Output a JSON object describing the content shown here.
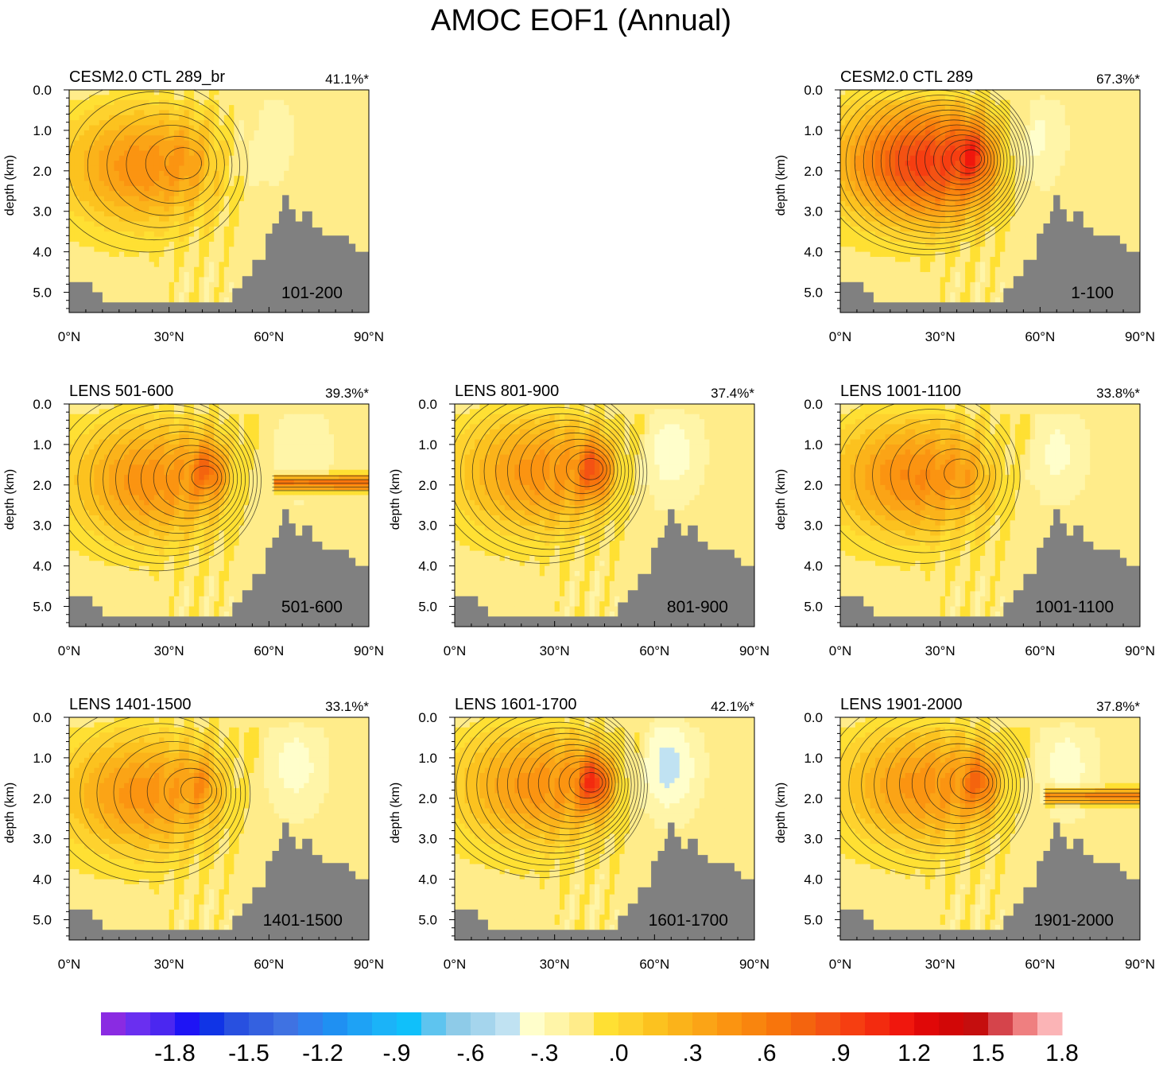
{
  "figure": {
    "title": "AMOC EOF1 (Annual)",
    "ylabel": "depth (km)",
    "xticks": [
      "0°N",
      "30°N",
      "60°N",
      "90°N"
    ],
    "yticks": [
      "0.0",
      "1.0",
      "2.0",
      "3.0",
      "4.0",
      "5.0"
    ]
  },
  "chart_data": [
    {
      "type": "heatmap",
      "title": "CESM2.0 CTL 289_br",
      "variance": "41.1%*",
      "period": "101-200",
      "amp": 0.62,
      "lat_center": 22,
      "depth_center": 1.9,
      "hot_lat": 36,
      "hot_amp": 0.12,
      "neg_lat": 58,
      "neg_amp": 0.15,
      "band": false,
      "band_amp": 0,
      "xlabel": "",
      "ylabel": "depth (km)",
      "xlim": [
        0,
        90
      ],
      "ylim": [
        5.5,
        0
      ]
    },
    {
      "type": "heatmap",
      "title": "CESM2.0 CTL 289",
      "variance": "67.3%*",
      "period": "1-100",
      "amp": 1.1,
      "lat_center": 25,
      "depth_center": 1.8,
      "hot_lat": 40,
      "hot_amp": 0.55,
      "neg_lat": 58,
      "neg_amp": 0.2,
      "band": false,
      "band_amp": 0,
      "xlabel": "",
      "ylabel": "depth (km)",
      "xlim": [
        0,
        90
      ],
      "ylim": [
        5.5,
        0
      ]
    },
    {
      "type": "heatmap",
      "title": "LENS 501-600",
      "variance": "39.3%*",
      "period": "501-600",
      "amp": 0.62,
      "lat_center": 25,
      "depth_center": 1.9,
      "hot_lat": 42,
      "hot_amp": 0.55,
      "neg_lat": 70,
      "neg_amp": 0.15,
      "band": true,
      "band_amp": 0.85,
      "xlabel": "",
      "ylabel": "depth (km)",
      "xlim": [
        0,
        90
      ],
      "ylim": [
        5.5,
        0
      ]
    },
    {
      "type": "heatmap",
      "title": "LENS 801-900",
      "variance": "37.4%*",
      "period": "801-900",
      "amp": 0.6,
      "lat_center": 25,
      "depth_center": 1.7,
      "hot_lat": 42,
      "hot_amp": 0.7,
      "neg_lat": 65,
      "neg_amp": 0.22,
      "band": false,
      "band_amp": 0,
      "xlabel": "",
      "ylabel": "depth (km)",
      "xlim": [
        0,
        90
      ],
      "ylim": [
        5.5,
        0
      ]
    },
    {
      "type": "heatmap",
      "title": "LENS 1001-1100",
      "variance": "33.8%*",
      "period": "1001-1100",
      "amp": 0.66,
      "lat_center": 22,
      "depth_center": 1.8,
      "hot_lat": 38,
      "hot_amp": 0.12,
      "neg_lat": 65,
      "neg_amp": 0.18,
      "band": false,
      "band_amp": 0,
      "xlabel": "",
      "ylabel": "depth (km)",
      "xlim": [
        0,
        90
      ],
      "ylim": [
        5.5,
        0
      ]
    },
    {
      "type": "heatmap",
      "title": "LENS 1401-1500",
      "variance": "33.1%*",
      "period": "1401-1500",
      "amp": 0.6,
      "lat_center": 22,
      "depth_center": 1.9,
      "hot_lat": 40,
      "hot_amp": 0.3,
      "neg_lat": 68,
      "neg_amp": 0.2,
      "band": false,
      "band_amp": 0,
      "xlabel": "",
      "ylabel": "depth (km)",
      "xlim": [
        0,
        90
      ],
      "ylim": [
        5.5,
        0
      ]
    },
    {
      "type": "heatmap",
      "title": "LENS 1601-1700",
      "variance": "42.1%*",
      "period": "1601-1700",
      "amp": 0.6,
      "lat_center": 25,
      "depth_center": 1.7,
      "hot_lat": 42,
      "hot_amp": 0.85,
      "neg_lat": 64,
      "neg_amp": 0.3,
      "band": false,
      "band_amp": 0,
      "xlabel": "",
      "ylabel": "depth (km)",
      "xlim": [
        0,
        90
      ],
      "ylim": [
        5.5,
        0
      ]
    },
    {
      "type": "heatmap",
      "title": "LENS 1901-2000",
      "variance": "37.8%*",
      "period": "1901-2000",
      "amp": 0.6,
      "lat_center": 25,
      "depth_center": 1.7,
      "hot_lat": 42,
      "hot_amp": 0.55,
      "neg_lat": 68,
      "neg_amp": 0.2,
      "band": true,
      "band_amp": 0.75,
      "xlabel": "",
      "ylabel": "depth (km)",
      "xlim": [
        0,
        90
      ],
      "ylim": [
        5.5,
        0
      ]
    }
  ],
  "colorbar": {
    "colors": [
      "#8a2be2",
      "#6a2ff0",
      "#4b27f0",
      "#1e14f5",
      "#1034e6",
      "#2850e0",
      "#3461e0",
      "#3f72e2",
      "#2f80ee",
      "#1f90f2",
      "#1ea2f5",
      "#1bb3f8",
      "#10c0fa",
      "#5ec4ef",
      "#8ecbe8",
      "#a5d5ed",
      "#c0e2f2",
      "#fffecb",
      "#fff5a8",
      "#ffec8a",
      "#ffe033",
      "#fed22e",
      "#fcc21f",
      "#fbb31a",
      "#fba416",
      "#fb9411",
      "#f9850e",
      "#f8750c",
      "#f4640e",
      "#f45213",
      "#f63e11",
      "#f32b0f",
      "#f0170d",
      "#e00808",
      "#d20707",
      "#c50e0e",
      "#d5444b",
      "#ef7f80",
      "#fbb4b6"
    ],
    "labels": [
      "-1.8",
      "-1.5",
      "-1.2",
      "-.9",
      "-.6",
      "-.3",
      ".0",
      ".3",
      ".6",
      ".9",
      "1.2",
      "1.5",
      "1.8"
    ]
  },
  "palette": {
    "land": "#808080",
    "contour": "#1a1a1a"
  }
}
